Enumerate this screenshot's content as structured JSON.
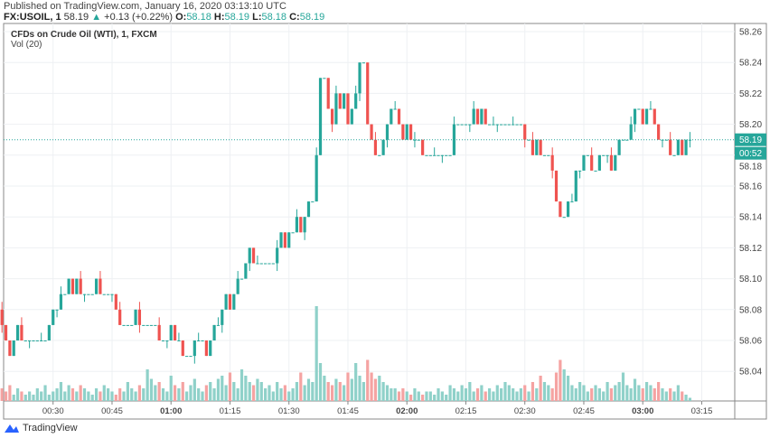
{
  "header": {
    "published": "Published on TradingView.com, January 16, 2020 03:13:10 UTC",
    "symbol": "FX:USOIL, 1",
    "last": "58.19",
    "arrow": "▲",
    "change": "+0.13 (+0.22%)",
    "o_label": "O:",
    "o": "58.18",
    "h_label": "H:",
    "h": "58.19",
    "l_label": "L:",
    "l": "58.18",
    "c_label": "C:",
    "c": "58.19"
  },
  "legend": {
    "title": "CFDs on Crude Oil (WTI), 1, FXCM",
    "vol": "Vol (20)"
  },
  "price_tag": "58.19",
  "countdown": "00:52",
  "brand": "TradingView",
  "colors": {
    "up": "#26a69a",
    "down": "#ef5350",
    "up_vol": "#8fd1c9",
    "down_vol": "#f5a3a2"
  },
  "chart_data": {
    "type": "candlestick",
    "start_time": "00:17",
    "interval_minutes": 1,
    "ylim": [
      58.02,
      58.27
    ],
    "yticks": [
      "58.26",
      "58.24",
      "58.22",
      "58.20",
      "58.18",
      "58.16",
      "58.14",
      "58.12",
      "58.10",
      "58.08",
      "58.06",
      "58.04"
    ],
    "xticks": [
      "00:30",
      "00:45",
      "01:00",
      "01:15",
      "01:30",
      "01:45",
      "02:00",
      "02:15",
      "02:30",
      "02:45",
      "03:00",
      "03:15"
    ],
    "bold_xticks": [
      "01:00",
      "02:00",
      "03:00"
    ],
    "first_open": 58.08,
    "closes": [
      58.07,
      58.06,
      58.05,
      58.06,
      58.07,
      58.06,
      58.06,
      58.06,
      58.06,
      58.06,
      58.06,
      58.06,
      58.07,
      58.08,
      58.08,
      58.09,
      58.09,
      58.1,
      58.09,
      58.1,
      58.09,
      58.09,
      58.09,
      58.09,
      58.1,
      58.09,
      58.09,
      58.09,
      58.09,
      58.08,
      58.07,
      58.07,
      58.07,
      58.07,
      58.08,
      58.07,
      58.07,
      58.07,
      58.07,
      58.07,
      58.06,
      58.06,
      58.06,
      58.07,
      58.06,
      58.06,
      58.05,
      58.05,
      58.05,
      58.06,
      58.06,
      58.06,
      58.05,
      58.06,
      58.07,
      58.07,
      58.08,
      58.09,
      58.08,
      58.09,
      58.1,
      58.1,
      58.11,
      58.12,
      58.11,
      58.11,
      58.11,
      58.11,
      58.11,
      58.11,
      58.12,
      58.13,
      58.12,
      58.13,
      58.13,
      58.14,
      58.13,
      58.14,
      58.15,
      58.15,
      58.18,
      58.23,
      58.23,
      58.21,
      58.2,
      58.22,
      58.21,
      58.22,
      58.2,
      58.21,
      58.22,
      58.24,
      58.24,
      58.2,
      58.19,
      58.18,
      58.18,
      58.19,
      58.2,
      58.21,
      58.21,
      58.2,
      58.19,
      58.2,
      58.19,
      58.19,
      58.19,
      58.18,
      58.18,
      58.18,
      58.18,
      58.18,
      58.18,
      58.18,
      58.18,
      58.2,
      58.2,
      58.2,
      58.2,
      58.2,
      58.21,
      58.2,
      58.21,
      58.2,
      58.2,
      58.2,
      58.2,
      58.2,
      58.2,
      58.2,
      58.2,
      58.2,
      58.2,
      58.19,
      58.19,
      58.18,
      58.19,
      58.18,
      58.18,
      58.18,
      58.17,
      58.15,
      58.14,
      58.14,
      58.15,
      58.15,
      58.17,
      58.17,
      58.18,
      58.18,
      58.17,
      58.17,
      58.18,
      58.18,
      58.18,
      58.17,
      58.18,
      58.19,
      58.19,
      58.19,
      58.2,
      58.21,
      58.21,
      58.2,
      58.21,
      58.21,
      58.2,
      58.19,
      58.19,
      58.19,
      58.18,
      58.18,
      58.19,
      58.18,
      58.19,
      58.19
    ],
    "volumes": [
      4,
      3,
      5,
      2,
      4,
      3,
      2,
      3,
      2,
      4,
      3,
      5,
      2,
      3,
      4,
      6,
      3,
      5,
      4,
      3,
      5,
      4,
      3,
      2,
      4,
      3,
      5,
      4,
      3,
      2,
      4,
      3,
      6,
      4,
      3,
      5,
      4,
      10,
      7,
      5,
      6,
      4,
      3,
      8,
      5,
      4,
      6,
      3,
      5,
      7,
      4,
      3,
      5,
      6,
      4,
      7,
      8,
      5,
      9,
      6,
      4,
      10,
      8,
      6,
      5,
      7,
      6,
      4,
      5,
      3,
      6,
      4,
      5,
      3,
      4,
      6,
      9,
      5,
      7,
      6,
      30,
      12,
      8,
      6,
      5,
      7,
      6,
      5,
      9,
      7,
      12,
      8,
      6,
      13,
      9,
      7,
      8,
      6,
      5,
      4,
      4,
      3,
      4,
      3,
      2,
      4,
      3,
      2,
      3,
      3,
      2,
      4,
      3,
      2,
      5,
      4,
      3,
      5,
      4,
      6,
      3,
      4,
      5,
      3,
      4,
      3,
      5,
      4,
      6,
      5,
      4,
      3,
      4,
      5,
      3,
      6,
      4,
      8,
      6,
      5,
      4,
      9,
      13,
      10,
      8,
      5,
      4,
      6,
      5,
      3,
      4,
      5,
      4,
      3,
      6,
      4,
      5,
      6,
      9,
      5,
      4,
      7,
      5,
      4,
      6,
      5,
      4,
      6,
      4,
      3,
      4,
      3,
      5,
      3,
      2,
      1
    ]
  }
}
